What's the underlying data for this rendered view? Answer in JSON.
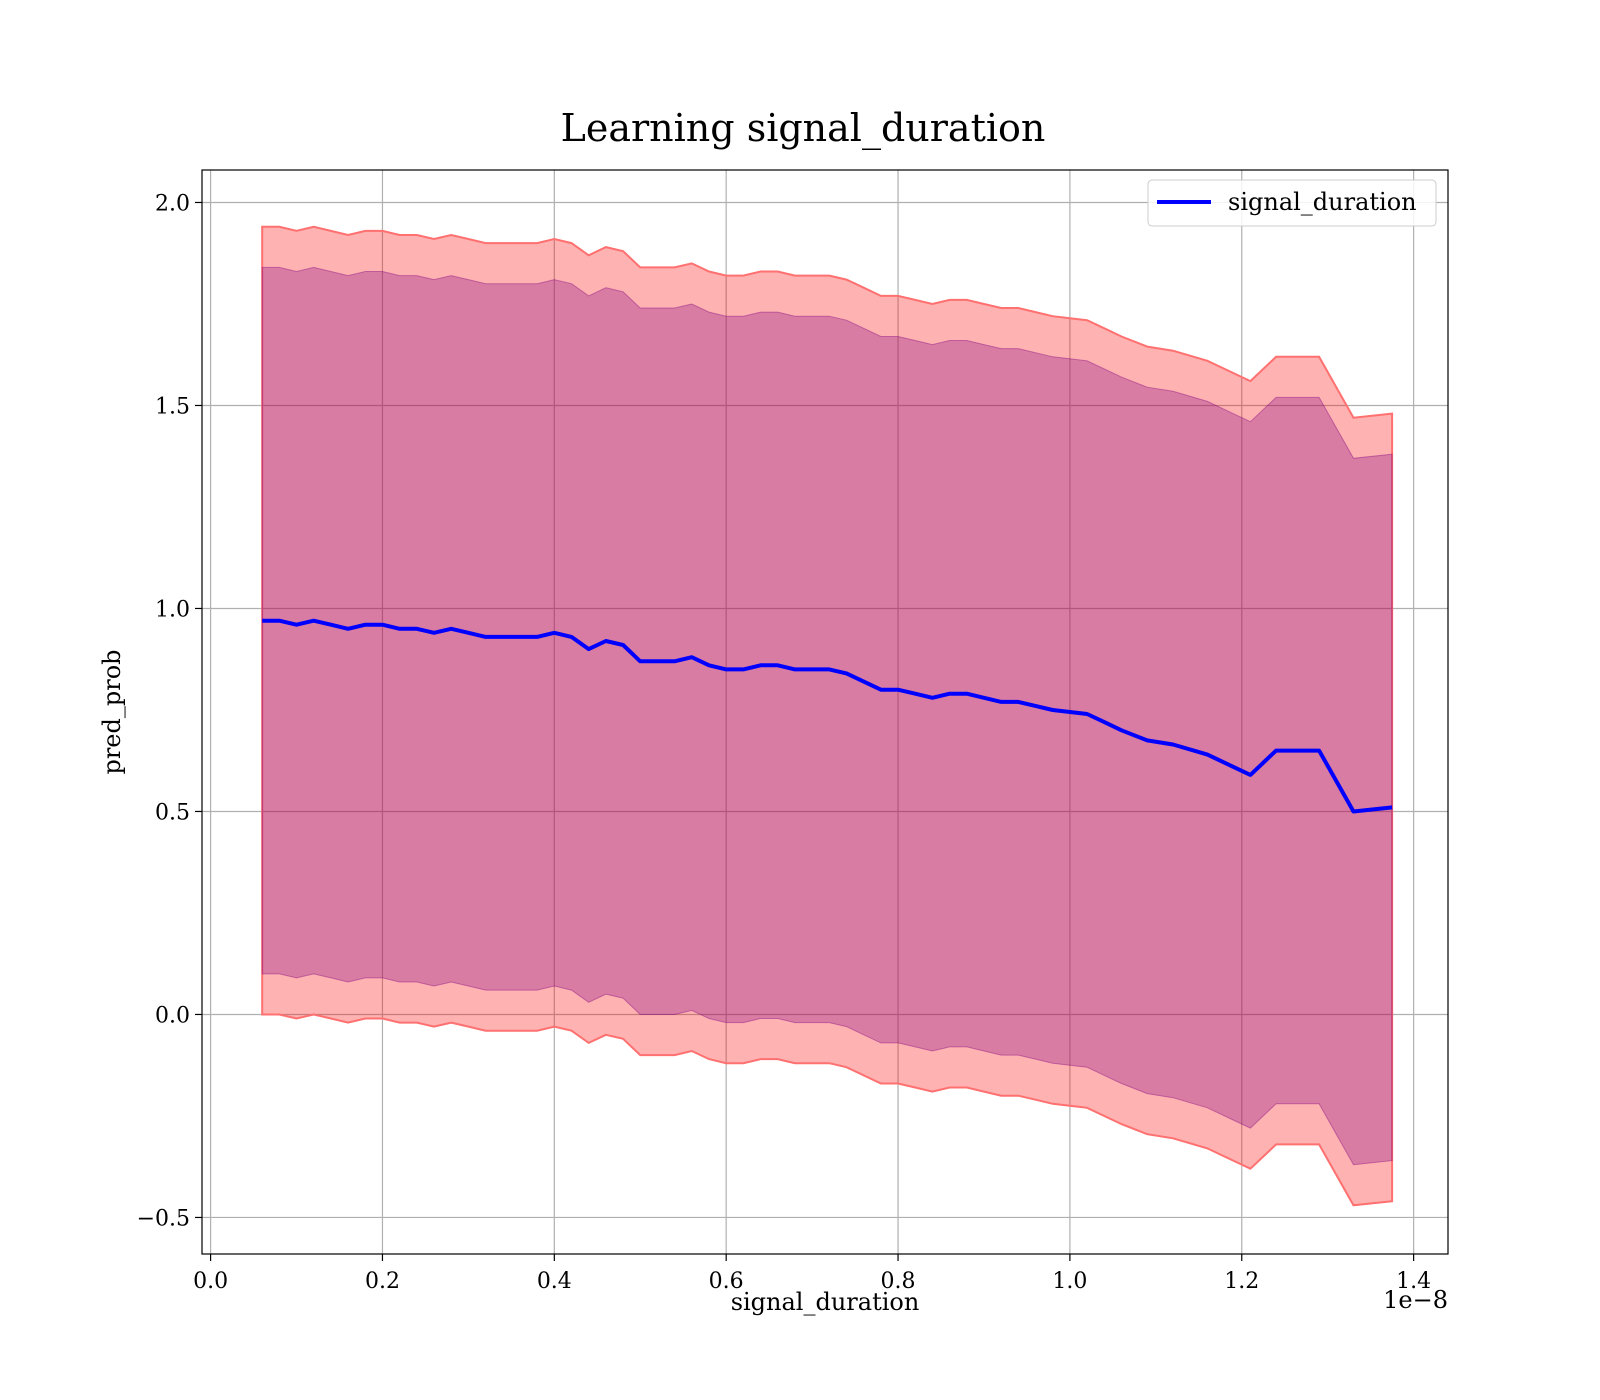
{
  "chart_data": {
    "type": "line",
    "title": "Learning signal_duration",
    "xlabel": "signal_duration",
    "ylabel": "pred_prob",
    "x_offset_label": "1e−8",
    "xlim": [
      -0.01,
      1.44
    ],
    "ylim": [
      -0.59,
      2.08
    ],
    "x_ticks": [
      0.0,
      0.2,
      0.4,
      0.6,
      0.8,
      1.0,
      1.2,
      1.4
    ],
    "x_tick_labels": [
      "0.0",
      "0.2",
      "0.4",
      "0.6",
      "0.8",
      "1.0",
      "1.2",
      "1.4"
    ],
    "y_ticks": [
      -0.5,
      0.0,
      0.5,
      1.0,
      1.5,
      2.0
    ],
    "y_tick_labels": [
      "−0.5",
      "0.0",
      "0.5",
      "1.0",
      "1.5",
      "2.0"
    ],
    "grid": true,
    "legend_position": "top-right",
    "colors": {
      "line": "#0000ff",
      "outer_band": "#ff0000",
      "inner_band": "#800080",
      "band_edge": "#ff7070"
    },
    "series": [
      {
        "name": "signal_duration",
        "x": [
          0.06,
          0.08,
          0.1,
          0.12,
          0.14,
          0.16,
          0.18,
          0.2,
          0.22,
          0.24,
          0.26,
          0.28,
          0.3,
          0.32,
          0.34,
          0.36,
          0.38,
          0.4,
          0.42,
          0.44,
          0.46,
          0.48,
          0.5,
          0.52,
          0.54,
          0.56,
          0.58,
          0.6,
          0.62,
          0.64,
          0.66,
          0.68,
          0.7,
          0.72,
          0.74,
          0.76,
          0.78,
          0.8,
          0.82,
          0.84,
          0.86,
          0.88,
          0.9,
          0.92,
          0.94,
          0.96,
          0.98,
          1.0,
          1.02,
          1.04,
          1.06,
          1.09,
          1.12,
          1.16,
          1.19,
          1.21,
          1.24,
          1.29,
          1.33,
          1.375
        ],
        "y": [
          0.97,
          0.97,
          0.96,
          0.97,
          0.96,
          0.95,
          0.96,
          0.96,
          0.95,
          0.95,
          0.94,
          0.95,
          0.94,
          0.93,
          0.93,
          0.93,
          0.93,
          0.94,
          0.93,
          0.9,
          0.92,
          0.91,
          0.87,
          0.87,
          0.87,
          0.88,
          0.86,
          0.85,
          0.85,
          0.86,
          0.86,
          0.85,
          0.85,
          0.85,
          0.84,
          0.82,
          0.8,
          0.8,
          0.79,
          0.78,
          0.79,
          0.79,
          0.78,
          0.77,
          0.77,
          0.76,
          0.75,
          0.745,
          0.74,
          0.72,
          0.7,
          0.675,
          0.665,
          0.64,
          0.61,
          0.59,
          0.65,
          0.65,
          0.5,
          0.51
        ],
        "outer_band": {
          "lower": [
            0.0,
            0.0,
            -0.01,
            0.0,
            -0.01,
            -0.02,
            -0.01,
            -0.01,
            -0.02,
            -0.02,
            -0.03,
            -0.02,
            -0.03,
            -0.04,
            -0.04,
            -0.04,
            -0.04,
            -0.03,
            -0.04,
            -0.07,
            -0.05,
            -0.06,
            -0.1,
            -0.1,
            -0.1,
            -0.09,
            -0.11,
            -0.12,
            -0.12,
            -0.11,
            -0.11,
            -0.12,
            -0.12,
            -0.12,
            -0.13,
            -0.15,
            -0.17,
            -0.17,
            -0.18,
            -0.19,
            -0.18,
            -0.18,
            -0.19,
            -0.2,
            -0.2,
            -0.21,
            -0.22,
            -0.225,
            -0.23,
            -0.25,
            -0.27,
            -0.295,
            -0.305,
            -0.33,
            -0.36,
            -0.38,
            -0.32,
            -0.32,
            -0.47,
            -0.46
          ],
          "upper": [
            1.94,
            1.94,
            1.93,
            1.94,
            1.93,
            1.92,
            1.93,
            1.93,
            1.92,
            1.92,
            1.91,
            1.92,
            1.91,
            1.9,
            1.9,
            1.9,
            1.9,
            1.91,
            1.9,
            1.87,
            1.89,
            1.88,
            1.84,
            1.84,
            1.84,
            1.85,
            1.83,
            1.82,
            1.82,
            1.83,
            1.83,
            1.82,
            1.82,
            1.82,
            1.81,
            1.79,
            1.77,
            1.77,
            1.76,
            1.75,
            1.76,
            1.76,
            1.75,
            1.74,
            1.74,
            1.73,
            1.72,
            1.715,
            1.71,
            1.69,
            1.67,
            1.645,
            1.635,
            1.61,
            1.58,
            1.56,
            1.62,
            1.62,
            1.47,
            1.48
          ]
        },
        "inner_band": {
          "lower": [
            0.1,
            0.1,
            0.09,
            0.1,
            0.09,
            0.08,
            0.09,
            0.09,
            0.08,
            0.08,
            0.07,
            0.08,
            0.07,
            0.06,
            0.06,
            0.06,
            0.06,
            0.07,
            0.06,
            0.03,
            0.05,
            0.04,
            0.0,
            0.0,
            0.0,
            0.01,
            -0.01,
            -0.02,
            -0.02,
            -0.01,
            -0.01,
            -0.02,
            -0.02,
            -0.02,
            -0.03,
            -0.05,
            -0.07,
            -0.07,
            -0.08,
            -0.09,
            -0.08,
            -0.08,
            -0.09,
            -0.1,
            -0.1,
            -0.11,
            -0.12,
            -0.125,
            -0.13,
            -0.15,
            -0.17,
            -0.195,
            -0.205,
            -0.23,
            -0.26,
            -0.28,
            -0.22,
            -0.22,
            -0.37,
            -0.36
          ],
          "upper": [
            1.84,
            1.84,
            1.83,
            1.84,
            1.83,
            1.82,
            1.83,
            1.83,
            1.82,
            1.82,
            1.81,
            1.82,
            1.81,
            1.8,
            1.8,
            1.8,
            1.8,
            1.81,
            1.8,
            1.77,
            1.79,
            1.78,
            1.74,
            1.74,
            1.74,
            1.75,
            1.73,
            1.72,
            1.72,
            1.73,
            1.73,
            1.72,
            1.72,
            1.72,
            1.71,
            1.69,
            1.67,
            1.67,
            1.66,
            1.65,
            1.66,
            1.66,
            1.65,
            1.64,
            1.64,
            1.63,
            1.62,
            1.615,
            1.61,
            1.59,
            1.57,
            1.545,
            1.535,
            1.51,
            1.48,
            1.46,
            1.52,
            1.52,
            1.37,
            1.38
          ]
        }
      }
    ]
  }
}
